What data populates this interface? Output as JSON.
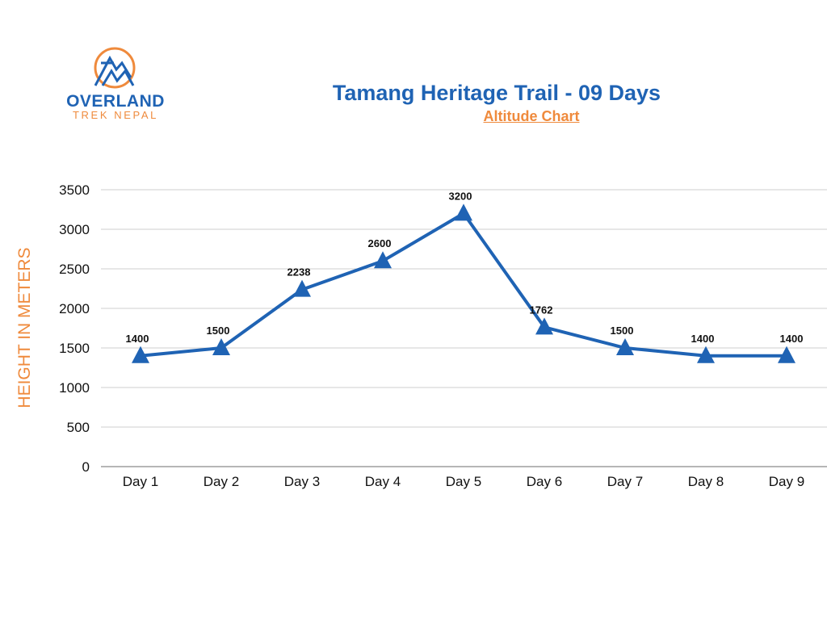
{
  "brand": {
    "name": "OVERLAND",
    "tagline": "TREK NEPAL",
    "colors": {
      "blue": "#1f63b4",
      "orange": "#ef8a3c"
    }
  },
  "header": {
    "title": "Tamang Heritage Trail - 09 Days",
    "subtitle": "Altitude Chart"
  },
  "chart_data": {
    "type": "line",
    "title": "Tamang Heritage Trail - 09 Days",
    "subtitle": "Altitude Chart",
    "xlabel": "",
    "ylabel": "HEIGHT IN METERS",
    "categories": [
      "Day 1",
      "Day 2",
      "Day 3",
      "Day 4",
      "Day 5",
      "Day 6",
      "Day 7",
      "Day 8",
      "Day 9"
    ],
    "series": [
      {
        "name": "Altitude",
        "values": [
          1400,
          1500,
          2238,
          2600,
          3200,
          1762,
          1500,
          1400,
          1400
        ],
        "color": "#1f63b4",
        "marker": "triangle"
      }
    ],
    "data_labels": [
      "1400",
      "1500",
      "2238",
      "2600",
      "3200",
      "1762",
      "1500",
      "1400",
      "1400"
    ],
    "ylim": [
      0,
      3500
    ],
    "yticks": [
      "0",
      "500",
      "1000",
      "1500",
      "2000",
      "2500",
      "3000",
      "3500"
    ],
    "grid": true,
    "legend": "none"
  }
}
